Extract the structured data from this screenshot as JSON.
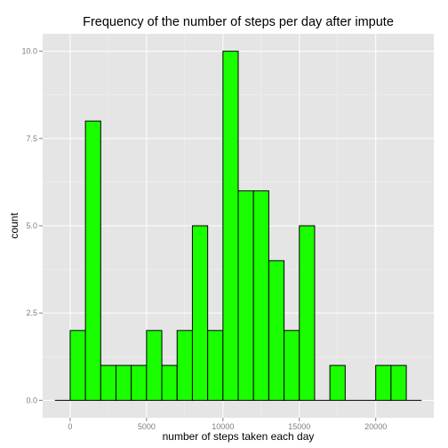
{
  "chart_data": {
    "type": "bar",
    "title": "Frequency of the number of steps per day after impute",
    "xlabel": "number of steps taken each day",
    "ylabel": "count",
    "xlim": [
      -1800,
      23800
    ],
    "ylim": [
      -0.5,
      10.5
    ],
    "x_ticks": [
      0,
      5000,
      10000,
      15000,
      20000
    ],
    "x_tick_labels": [
      "0",
      "5000",
      "10000",
      "15000",
      "20000"
    ],
    "y_ticks": [
      0,
      2.5,
      5,
      7.5,
      10
    ],
    "y_tick_labels": [
      "0.0",
      "2.5",
      "5.0",
      "7.5",
      "10.0"
    ],
    "bin_width": 1000,
    "bins": [
      {
        "x0": -1000,
        "x1": 0,
        "count": 0
      },
      {
        "x0": 0,
        "x1": 1000,
        "count": 2
      },
      {
        "x0": 1000,
        "x1": 2000,
        "count": 8
      },
      {
        "x0": 2000,
        "x1": 3000,
        "count": 1
      },
      {
        "x0": 3000,
        "x1": 4000,
        "count": 1
      },
      {
        "x0": 4000,
        "x1": 5000,
        "count": 1
      },
      {
        "x0": 5000,
        "x1": 6000,
        "count": 2
      },
      {
        "x0": 6000,
        "x1": 7000,
        "count": 1
      },
      {
        "x0": 7000,
        "x1": 8000,
        "count": 2
      },
      {
        "x0": 8000,
        "x1": 9000,
        "count": 5
      },
      {
        "x0": 9000,
        "x1": 10000,
        "count": 2
      },
      {
        "x0": 10000,
        "x1": 11000,
        "count": 10
      },
      {
        "x0": 11000,
        "x1": 12000,
        "count": 6
      },
      {
        "x0": 12000,
        "x1": 13000,
        "count": 6
      },
      {
        "x0": 13000,
        "x1": 14000,
        "count": 4
      },
      {
        "x0": 14000,
        "x1": 15000,
        "count": 2
      },
      {
        "x0": 15000,
        "x1": 16000,
        "count": 5
      },
      {
        "x0": 16000,
        "x1": 17000,
        "count": 0
      },
      {
        "x0": 17000,
        "x1": 18000,
        "count": 1
      },
      {
        "x0": 18000,
        "x1": 19000,
        "count": 0
      },
      {
        "x0": 19000,
        "x1": 20000,
        "count": 0
      },
      {
        "x0": 20000,
        "x1": 21000,
        "count": 1
      },
      {
        "x0": 21000,
        "x1": 22000,
        "count": 1
      },
      {
        "x0": 22000,
        "x1": 23000,
        "count": 0
      }
    ],
    "colors": {
      "bar_fill": "#1aff00",
      "bar_stroke": "#000000",
      "panel_background": "#e5e5e5",
      "grid_major": "#ffffff",
      "grid_minor": "#f2f2f2",
      "tick_label": "#7f7f7f"
    },
    "grid": true,
    "legend": "none"
  }
}
